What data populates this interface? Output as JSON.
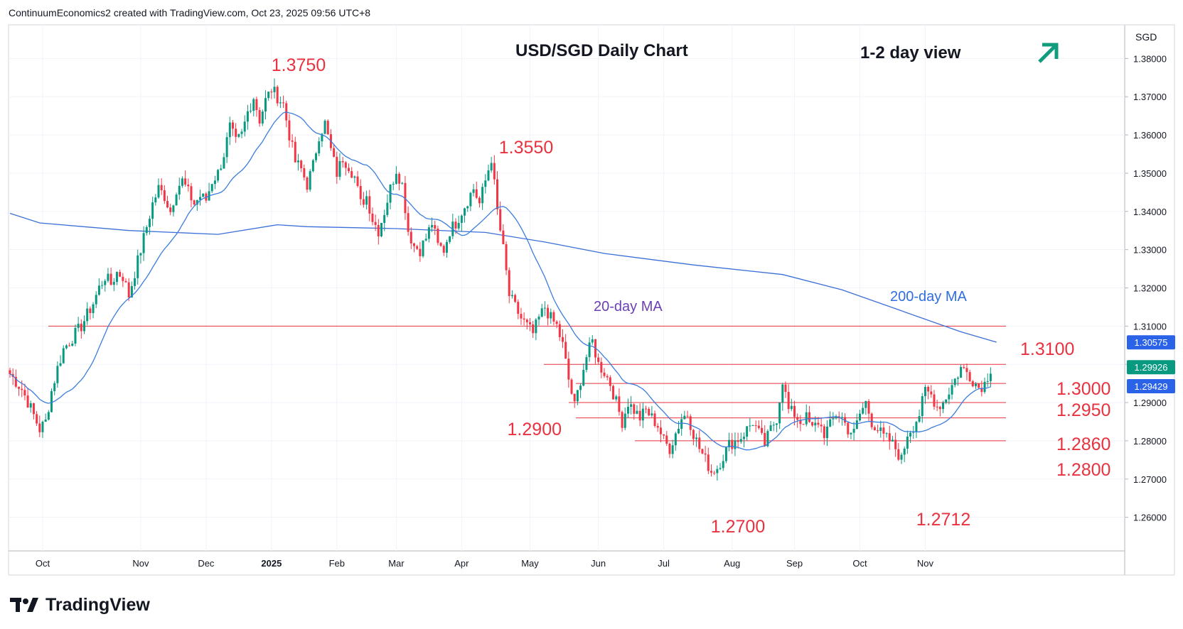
{
  "header": {
    "attribution": "ContinuumEconomics2 created with TradingView.com, Oct 23, 2025 09:56 UTC+8"
  },
  "brand": {
    "name": "TradingView"
  },
  "colors": {
    "up": "#089981",
    "down": "#f23645",
    "ma20": "#3b7ddd",
    "ma200": "#3b6fd8",
    "level_text": "#e8323f",
    "level_line": "#e8323f",
    "ma20_label": "#6b3fb5",
    "ma200_label": "#2f6de0",
    "arrow": "#119c7e"
  },
  "chart_data": {
    "type": "candlestick",
    "title": "USD/SGD Daily Chart",
    "subtitle": "1-2 day view",
    "currency_label": "SGD",
    "y_ticks": [
      "1.38000",
      "1.37000",
      "1.36000",
      "1.35000",
      "1.34000",
      "1.33000",
      "1.32000",
      "1.31000",
      "1.30000",
      "1.29000",
      "1.28000",
      "1.27000",
      "1.26000"
    ],
    "ylim": [
      1.26,
      1.38
    ],
    "x_ticks": [
      "Oct",
      "Nov",
      "Dec",
      "2025",
      "Feb",
      "Mar",
      "Apr",
      "May",
      "Jun",
      "Jul",
      "Aug",
      "Sep",
      "Oct",
      "Nov"
    ],
    "price_badges": [
      {
        "value": "1.30575",
        "color": "#2a62e8",
        "text_color": "#ffffff"
      },
      {
        "value": "1.29926",
        "color": "#089981",
        "text_color": "#ffffff"
      },
      {
        "value": "1.29429",
        "color": "#2a62e8",
        "text_color": "#ffffff"
      }
    ],
    "levels": [
      {
        "label": "1.3750",
        "value": 1.375
      },
      {
        "label": "1.3550",
        "value": 1.355
      },
      {
        "label": "1.3100",
        "value": 1.31
      },
      {
        "label": "1.3000",
        "value": 1.3
      },
      {
        "label": "1.2950",
        "value": 1.295
      },
      {
        "label": "1.2900",
        "value": 1.29
      },
      {
        "label": "1.2860",
        "value": 1.286
      },
      {
        "label": "1.2800",
        "value": 1.28
      },
      {
        "label": "1.2700",
        "value": 1.27
      },
      {
        "label": "1.2712",
        "value": 1.2712
      }
    ],
    "annotations": {
      "ma20": "20-day MA",
      "ma200": "200-day MA"
    },
    "close_path": [
      [
        0,
        1.2975
      ],
      [
        4,
        1.2935
      ],
      [
        7,
        1.2885
      ],
      [
        10,
        1.283
      ],
      [
        12,
        1.285
      ],
      [
        14,
        1.293
      ],
      [
        16,
        1.299
      ],
      [
        18,
        1.304
      ],
      [
        20,
        1.306
      ],
      [
        22,
        1.308
      ],
      [
        24,
        1.31
      ],
      [
        26,
        1.313
      ],
      [
        28,
        1.316
      ],
      [
        30,
        1.32
      ],
      [
        32,
        1.323
      ],
      [
        34,
        1.321
      ],
      [
        36,
        1.324
      ],
      [
        38,
        1.323
      ],
      [
        40,
        1.318
      ],
      [
        42,
        1.324
      ],
      [
        44,
        1.33
      ],
      [
        46,
        1.336
      ],
      [
        48,
        1.342
      ],
      [
        50,
        1.346
      ],
      [
        52,
        1.344
      ],
      [
        54,
        1.34
      ],
      [
        56,
        1.346
      ],
      [
        58,
        1.348
      ],
      [
        60,
        1.345
      ],
      [
        62,
        1.342
      ],
      [
        64,
        1.344
      ],
      [
        66,
        1.343
      ],
      [
        68,
        1.348
      ],
      [
        70,
        1.35
      ],
      [
        72,
        1.355
      ],
      [
        74,
        1.362
      ],
      [
        76,
        1.358
      ],
      [
        78,
        1.36
      ],
      [
        80,
        1.366
      ],
      [
        82,
        1.37
      ],
      [
        84,
        1.364
      ],
      [
        86,
        1.369
      ],
      [
        88,
        1.372
      ],
      [
        90,
        1.37
      ],
      [
        92,
        1.368
      ],
      [
        94,
        1.36
      ],
      [
        96,
        1.353
      ],
      [
        98,
        1.351
      ],
      [
        100,
        1.347
      ],
      [
        102,
        1.352
      ],
      [
        104,
        1.36
      ],
      [
        106,
        1.363
      ],
      [
        108,
        1.356
      ],
      [
        110,
        1.35
      ],
      [
        112,
        1.354
      ],
      [
        114,
        1.352
      ],
      [
        116,
        1.349
      ],
      [
        118,
        1.342
      ],
      [
        120,
        1.344
      ],
      [
        122,
        1.338
      ],
      [
        124,
        1.335
      ],
      [
        126,
        1.34
      ],
      [
        128,
        1.346
      ],
      [
        130,
        1.351
      ],
      [
        132,
        1.347
      ],
      [
        134,
        1.335
      ],
      [
        136,
        1.331
      ],
      [
        138,
        1.33
      ],
      [
        140,
        1.333
      ],
      [
        142,
        1.337
      ],
      [
        144,
        1.331
      ],
      [
        146,
        1.33
      ],
      [
        148,
        1.335
      ],
      [
        150,
        1.337
      ],
      [
        152,
        1.34
      ],
      [
        154,
        1.343
      ],
      [
        156,
        1.346
      ],
      [
        158,
        1.342
      ],
      [
        160,
        1.348
      ],
      [
        162,
        1.354
      ],
      [
        164,
        1.34
      ],
      [
        166,
        1.33
      ],
      [
        168,
        1.318
      ],
      [
        170,
        1.315
      ],
      [
        172,
        1.312
      ],
      [
        174,
        1.31
      ],
      [
        176,
        1.308
      ],
      [
        178,
        1.312
      ],
      [
        180,
        1.315
      ],
      [
        182,
        1.312
      ],
      [
        184,
        1.31
      ],
      [
        186,
        1.305
      ],
      [
        188,
        1.296
      ],
      [
        190,
        1.289
      ],
      [
        192,
        1.296
      ],
      [
        194,
        1.302
      ],
      [
        196,
        1.306
      ],
      [
        198,
        1.3
      ],
      [
        200,
        1.298
      ],
      [
        202,
        1.295
      ],
      [
        204,
        1.29
      ],
      [
        206,
        1.285
      ],
      [
        208,
        1.29
      ],
      [
        210,
        1.288
      ],
      [
        212,
        1.286
      ],
      [
        214,
        1.288
      ],
      [
        216,
        1.286
      ],
      [
        218,
        1.284
      ],
      [
        220,
        1.28
      ],
      [
        222,
        1.278
      ],
      [
        224,
        1.282
      ],
      [
        226,
        1.286
      ],
      [
        228,
        1.287
      ],
      [
        230,
        1.282
      ],
      [
        232,
        1.278
      ],
      [
        234,
        1.275
      ],
      [
        236,
        1.272
      ],
      [
        238,
        1.273
      ],
      [
        240,
        1.276
      ],
      [
        242,
        1.279
      ],
      [
        244,
        1.28
      ],
      [
        246,
        1.281
      ],
      [
        248,
        1.283
      ],
      [
        250,
        1.285
      ],
      [
        252,
        1.282
      ],
      [
        254,
        1.279
      ],
      [
        256,
        1.283
      ],
      [
        258,
        1.286
      ],
      [
        260,
        1.296
      ],
      [
        262,
        1.288
      ],
      [
        264,
        1.287
      ],
      [
        266,
        1.285
      ],
      [
        268,
        1.286
      ],
      [
        270,
        1.283
      ],
      [
        272,
        1.285
      ],
      [
        274,
        1.282
      ],
      [
        276,
        1.284
      ],
      [
        278,
        1.287
      ],
      [
        280,
        1.286
      ],
      [
        282,
        1.283
      ],
      [
        284,
        1.282
      ],
      [
        286,
        1.287
      ],
      [
        288,
        1.29
      ],
      [
        290,
        1.285
      ],
      [
        292,
        1.283
      ],
      [
        294,
        1.281
      ],
      [
        296,
        1.28
      ],
      [
        298,
        1.278
      ],
      [
        300,
        1.275
      ],
      [
        302,
        1.282
      ],
      [
        304,
        1.284
      ],
      [
        306,
        1.287
      ],
      [
        308,
        1.293
      ],
      [
        310,
        1.292
      ],
      [
        312,
        1.289
      ],
      [
        314,
        1.29
      ],
      [
        316,
        1.293
      ],
      [
        318,
        1.296
      ],
      [
        320,
        1.299
      ],
      [
        322,
        1.298
      ],
      [
        324,
        1.296
      ],
      [
        326,
        1.294
      ],
      [
        328,
        1.295
      ],
      [
        330,
        1.299
      ]
    ]
  }
}
